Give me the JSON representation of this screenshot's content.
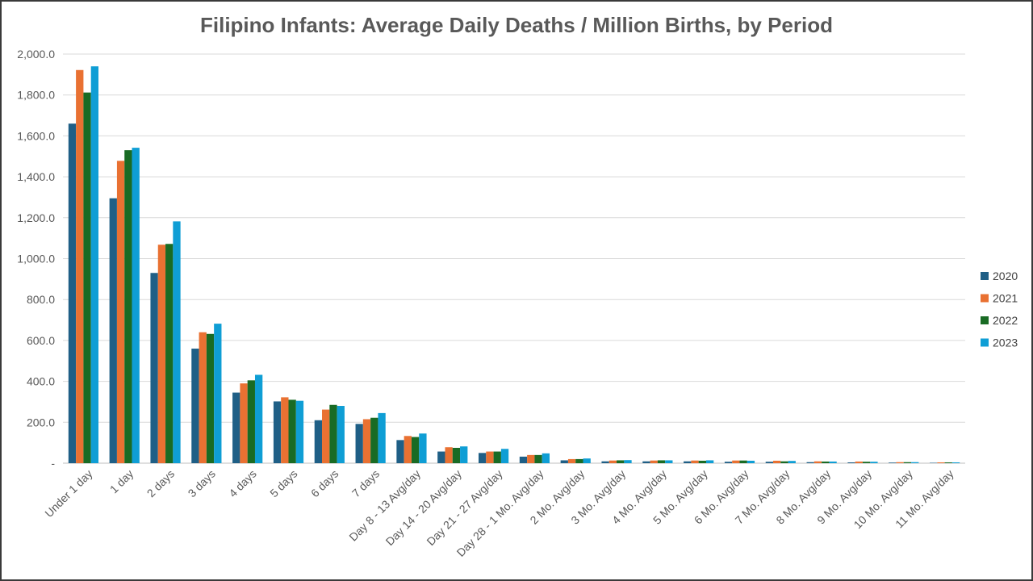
{
  "chart_data": {
    "type": "bar",
    "title": "Filipino Infants: Average Daily Deaths / Million Births, by Period",
    "xlabel": "",
    "ylabel": "",
    "ylim": [
      0,
      2000
    ],
    "yticks": [
      "-",
      "200.0",
      "400.0",
      "600.0",
      "800.0",
      "1,000.0",
      "1,200.0",
      "1,400.0",
      "1,600.0",
      "1,800.0",
      "2,000.0"
    ],
    "grid": true,
    "legend_position": "right",
    "categories": [
      "Under 1 day",
      "1 day",
      "2 days",
      "3 days",
      "4 days",
      "5 days",
      "6 days",
      "7 days",
      "Day 8 - 13 Avg/day",
      "Day 14 - 20 Avg/day",
      "Day 21 - 27 Avg/day",
      "Day 28 - 1 Mo. Avg/day",
      "2 Mo. Avg/day",
      "3 Mo. Avg/day",
      "4 Mo. Avg/day",
      "5 Mo. Avg/day",
      "6 Mo. Avg/day",
      "7 Mo. Avg/day",
      "8 Mo. Avg/day",
      "9 Mo. Avg/day",
      "10 Mo. Avg/day",
      "11 Mo. Avg/day"
    ],
    "series": [
      {
        "name": "2020",
        "color": "#1f5f86",
        "values": [
          1660,
          1295,
          930,
          560,
          345,
          302,
          210,
          192,
          113,
          57,
          50,
          32,
          14,
          9,
          9,
          9,
          7,
          7,
          5,
          4,
          3,
          2
        ]
      },
      {
        "name": "2021",
        "color": "#e97132",
        "values": [
          1922,
          1478,
          1068,
          640,
          390,
          322,
          262,
          215,
          133,
          78,
          57,
          40,
          20,
          13,
          13,
          13,
          13,
          12,
          9,
          8,
          5,
          4
        ]
      },
      {
        "name": "2022",
        "color": "#196b24",
        "values": [
          1812,
          1530,
          1072,
          632,
          405,
          310,
          285,
          222,
          128,
          75,
          57,
          40,
          20,
          14,
          14,
          12,
          13,
          9,
          8,
          7,
          5,
          4
        ]
      },
      {
        "name": "2023",
        "color": "#0f9ed5",
        "values": [
          1940,
          1542,
          1182,
          682,
          432,
          305,
          280,
          245,
          145,
          82,
          70,
          48,
          23,
          15,
          14,
          14,
          12,
          11,
          8,
          7,
          5,
          4
        ]
      }
    ]
  }
}
